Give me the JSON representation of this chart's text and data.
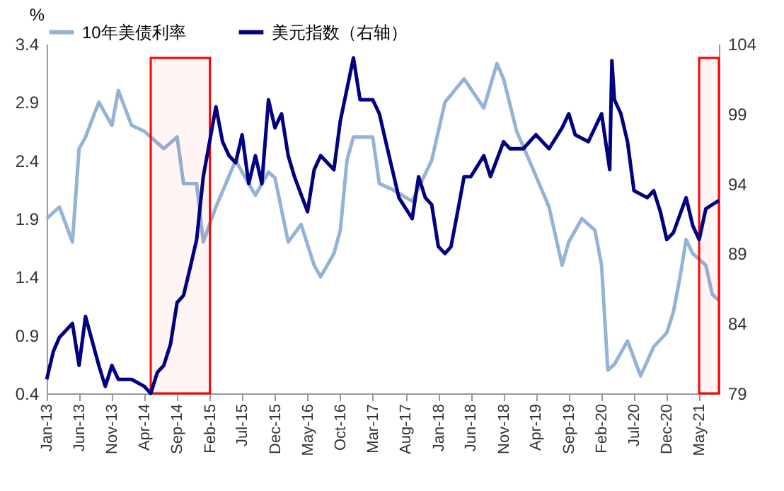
{
  "chart_data": {
    "type": "line",
    "ylabel": "%",
    "legend": "top",
    "grid": false,
    "xlim": [
      "2013-01",
      "2021-08"
    ],
    "xticks": [
      {
        "value": "2013-01",
        "label": "Jan-13"
      },
      {
        "value": "2013-06",
        "label": "Jun-13"
      },
      {
        "value": "2013-11",
        "label": "Nov-13"
      },
      {
        "value": "2014-04",
        "label": "Apr-14"
      },
      {
        "value": "2014-09",
        "label": "Sep-14"
      },
      {
        "value": "2015-02",
        "label": "Feb-15"
      },
      {
        "value": "2015-07",
        "label": "Jul-15"
      },
      {
        "value": "2015-12",
        "label": "Dec-15"
      },
      {
        "value": "2016-05",
        "label": "May-16"
      },
      {
        "value": "2016-10",
        "label": "Oct-16"
      },
      {
        "value": "2017-03",
        "label": "Mar-17"
      },
      {
        "value": "2017-08",
        "label": "Aug-17"
      },
      {
        "value": "2018-01",
        "label": "Jan-18"
      },
      {
        "value": "2018-06",
        "label": "Jun-18"
      },
      {
        "value": "2018-11",
        "label": "Nov-18"
      },
      {
        "value": "2019-04",
        "label": "Apr-19"
      },
      {
        "value": "2019-09",
        "label": "Sep-19"
      },
      {
        "value": "2020-02",
        "label": "Feb-20"
      },
      {
        "value": "2020-07",
        "label": "Jul-20"
      },
      {
        "value": "2020-12",
        "label": "Dec-20"
      },
      {
        "value": "2021-05",
        "label": "May-21"
      }
    ],
    "ylim": [
      0.4,
      3.4
    ],
    "yticks": [
      0.4,
      0.9,
      1.4,
      1.9,
      2.4,
      2.9,
      3.4
    ],
    "y2lim": [
      79,
      104
    ],
    "y2ticks": [
      79,
      84,
      89,
      94,
      99,
      104
    ],
    "series": [
      {
        "name": "10年美债利率",
        "color": "#95b3d7",
        "x": [
          "2013-01",
          "2013-03",
          "2013-05",
          "2013-06",
          "2013-07",
          "2013-09",
          "2013-11",
          "2013-12",
          "2014-02",
          "2014-04",
          "2014-07",
          "2014-09",
          "2014-10",
          "2014-12",
          "2015-01",
          "2015-03",
          "2015-06",
          "2015-07",
          "2015-09",
          "2015-11",
          "2015-12",
          "2016-02",
          "2016-04",
          "2016-06",
          "2016-07",
          "2016-09",
          "2016-10",
          "2016-11",
          "2016-12",
          "2017-03",
          "2017-04",
          "2017-06",
          "2017-09",
          "2017-12",
          "2018-02",
          "2018-05",
          "2018-08",
          "2018-10",
          "2018-11",
          "2019-01",
          "2019-03",
          "2019-06",
          "2019-08",
          "2019-09",
          "2019-11",
          "2020-01",
          "2020-02",
          "2020-03",
          "2020-04",
          "2020-06",
          "2020-08",
          "2020-10",
          "2020-12",
          "2021-01",
          "2021-02",
          "2021-03",
          "2021-04",
          "2021-06",
          "2021-07",
          "2021-08"
        ],
        "values": [
          1.9,
          2.0,
          1.7,
          2.5,
          2.6,
          2.9,
          2.7,
          3.0,
          2.7,
          2.65,
          2.5,
          2.6,
          2.2,
          2.2,
          1.7,
          2.0,
          2.4,
          2.3,
          2.1,
          2.3,
          2.25,
          1.7,
          1.85,
          1.5,
          1.4,
          1.6,
          1.8,
          2.4,
          2.6,
          2.6,
          2.2,
          2.15,
          2.05,
          2.4,
          2.9,
          3.1,
          2.85,
          3.23,
          3.1,
          2.65,
          2.4,
          2.0,
          1.5,
          1.7,
          1.9,
          1.8,
          1.5,
          0.6,
          0.65,
          0.85,
          0.55,
          0.8,
          0.92,
          1.1,
          1.4,
          1.72,
          1.6,
          1.5,
          1.25,
          1.2
        ]
      },
      {
        "name": "美元指数（右轴）",
        "color": "#000080",
        "axis": "y2",
        "x": [
          "2013-01",
          "2013-02",
          "2013-03",
          "2013-05",
          "2013-06",
          "2013-07",
          "2013-09",
          "2013-10",
          "2013-11",
          "2013-12",
          "2014-02",
          "2014-04",
          "2014-05",
          "2014-06",
          "2014-07",
          "2014-08",
          "2014-09",
          "2014-10",
          "2014-11",
          "2014-12",
          "2015-01",
          "2015-03",
          "2015-04",
          "2015-05",
          "2015-06",
          "2015-07",
          "2015-08",
          "2015-09",
          "2015-10",
          "2015-11",
          "2015-12",
          "2016-01",
          "2016-02",
          "2016-03",
          "2016-05",
          "2016-06",
          "2016-07",
          "2016-09",
          "2016-10",
          "2016-12",
          "2017-01",
          "2017-03",
          "2017-04",
          "2017-05",
          "2017-07",
          "2017-09",
          "2017-10",
          "2017-11",
          "2017-12",
          "2018-01",
          "2018-02",
          "2018-03",
          "2018-04",
          "2018-05",
          "2018-06",
          "2018-08",
          "2018-09",
          "2018-11",
          "2018-12",
          "2019-02",
          "2019-04",
          "2019-06",
          "2019-08",
          "2019-09",
          "2019-10",
          "2019-12",
          "2020-02",
          "2020-03-10",
          "2020-03-20",
          "2020-04",
          "2020-05",
          "2020-06",
          "2020-07",
          "2020-09",
          "2020-10",
          "2020-11",
          "2020-12",
          "2021-01",
          "2021-03",
          "2021-04",
          "2021-05",
          "2021-06",
          "2021-07",
          "2021-08"
        ],
        "values": [
          80,
          82,
          83,
          84,
          81,
          84.5,
          81,
          79.5,
          81,
          80,
          80,
          79.5,
          79,
          80.5,
          81,
          82.5,
          85.5,
          86,
          88,
          90,
          94.5,
          99.5,
          97,
          96,
          95.5,
          97.5,
          94,
          96,
          94,
          100,
          98,
          99,
          96,
          94.5,
          92,
          95,
          96,
          95,
          98.5,
          103,
          100,
          100,
          99,
          97,
          93,
          91.5,
          94.5,
          93,
          92.5,
          89.5,
          89,
          89.5,
          92,
          94.5,
          94.5,
          96,
          94.5,
          97,
          96.5,
          96.5,
          97.5,
          96.5,
          98,
          99,
          97.5,
          97,
          99,
          95,
          102.8,
          100,
          99,
          97,
          93.5,
          93,
          93.5,
          92,
          90,
          90.5,
          93,
          91,
          90,
          92.2,
          92.5,
          92.8
        ]
      }
    ],
    "bands": [
      {
        "axis": "x",
        "from": "2014-05",
        "to": "2015-02",
        "color": "#ff0000"
      },
      {
        "axis": "x",
        "from": "2021-05",
        "to": "2021-08",
        "color": "#ff0000"
      }
    ]
  }
}
